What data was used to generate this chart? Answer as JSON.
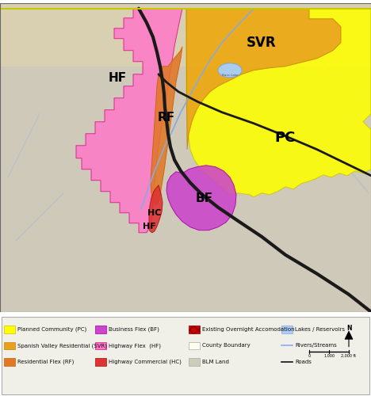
{
  "fig_bg_color": "#ffffff",
  "map_bg_color": "#d4cfc0",
  "terrain_color": "#cdc8b8",
  "yellow_line_color": "#d4cc00",
  "legend_bg_color": "#f0efe8",
  "zones": {
    "PC": {
      "label": "PC",
      "facecolor": "#ffff00",
      "edgecolor": "#c8c800",
      "lw": 0.8,
      "alpha": 0.88
    },
    "SVR": {
      "label": "SVR",
      "facecolor": "#e8a020",
      "edgecolor": "#c88800",
      "lw": 0.8,
      "alpha": 0.88
    },
    "HF": {
      "label": "HF",
      "facecolor": "#ff78c8",
      "edgecolor": "#dd1188",
      "lw": 0.8,
      "alpha": 0.85
    },
    "RF": {
      "label": "RF",
      "facecolor": "#e07828",
      "edgecolor": "#cc6000",
      "lw": 0.8,
      "alpha": 0.88
    },
    "BF": {
      "label": "BF",
      "facecolor": "#cc44cc",
      "edgecolor": "#aa00aa",
      "lw": 0.8,
      "alpha": 0.88
    },
    "HC": {
      "label": "HC",
      "facecolor": "#dd3333",
      "edgecolor": "#aa1111",
      "lw": 0.8,
      "alpha": 0.88
    }
  },
  "legend_rows": [
    [
      {
        "type": "patch",
        "fc": "#ffff00",
        "ec": "#c8c800",
        "label": "Planned Community (PC)"
      },
      {
        "type": "patch",
        "fc": "#cc44cc",
        "ec": "#aa00aa",
        "label": "Business Flex (BF)"
      },
      {
        "type": "hatch",
        "fc": "#cc0000",
        "ec": "#880000",
        "hatch": "xxx",
        "label": "Existing Overnight Accomodation"
      },
      {
        "type": "patch",
        "fc": "#aaccff",
        "ec": "#88aacc",
        "label": "Lakes / Reservoirs"
      }
    ],
    [
      {
        "type": "patch",
        "fc": "#e8a020",
        "ec": "#c88800",
        "label": "Spanish Valley Residential (SVR)"
      },
      {
        "type": "patch",
        "fc": "#ff78c8",
        "ec": "#dd1188",
        "label": "Highway Flex  (HF)"
      },
      {
        "type": "patch",
        "fc": "#ffffee",
        "ec": "#aaaaaa",
        "label": "County Boundary"
      },
      {
        "type": "line",
        "color": "#88aaff",
        "label": "Rivers/Streams"
      }
    ],
    [
      {
        "type": "patch",
        "fc": "#e07828",
        "ec": "#cc6000",
        "label": "Residential Flex (RF)"
      },
      {
        "type": "patch",
        "fc": "#dd3333",
        "ec": "#aa1111",
        "label": "Highway Commercial (HC)"
      },
      {
        "type": "patch",
        "fc": "#ccccbb",
        "ec": "#aaaaaa",
        "label": "BLM Land"
      },
      {
        "type": "line",
        "color": "#111111",
        "label": "Roads"
      }
    ]
  ]
}
